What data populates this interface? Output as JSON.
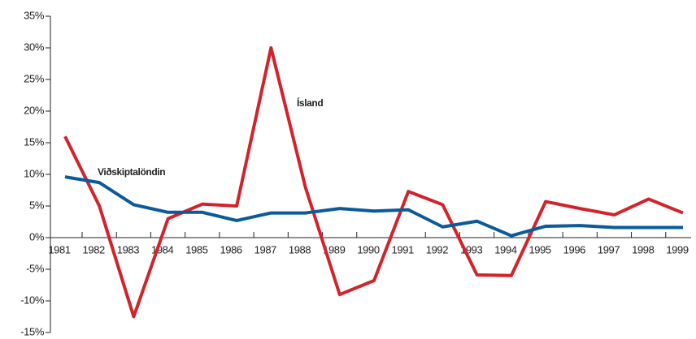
{
  "chart_data": {
    "type": "line",
    "categories": [
      "1981",
      "1982",
      "1983",
      "1984",
      "1985",
      "1986",
      "1987",
      "1988",
      "1989",
      "1990",
      "1991",
      "1992",
      "1993",
      "1994",
      "1995",
      "1996",
      "1997",
      "1998",
      "1999"
    ],
    "series": [
      {
        "name": "Ísland",
        "color": "#d2232a",
        "values": [
          16,
          5,
          -12.5,
          3,
          5.3,
          5,
          30,
          8,
          -9,
          -6.8,
          7.3,
          5.2,
          -5.9,
          -6,
          5.7,
          4.6,
          3.6,
          6.1,
          3.9
        ]
      },
      {
        "name": "Viðskiptalöndin",
        "color": "#0a5a9c",
        "values": [
          9.6,
          8.7,
          5.2,
          4,
          4,
          2.7,
          3.9,
          3.9,
          4.6,
          4.2,
          4.4,
          1.7,
          2.6,
          0.3,
          1.8,
          1.9,
          1.6,
          1.6,
          1.6
        ]
      }
    ],
    "ylim": [
      -15,
      35
    ],
    "yticks": [
      {
        "value": -15,
        "label": "-15%"
      },
      {
        "value": -10,
        "label": "-10%"
      },
      {
        "value": -5,
        "label": "-5%"
      },
      {
        "value": 0,
        "label": "0%"
      },
      {
        "value": 5,
        "label": "5%"
      },
      {
        "value": 10,
        "label": "10%"
      },
      {
        "value": 15,
        "label": "15%"
      },
      {
        "value": 20,
        "label": "20%"
      },
      {
        "value": 25,
        "label": "25%"
      },
      {
        "value": 30,
        "label": "30%"
      },
      {
        "value": 35,
        "label": "35%"
      }
    ]
  }
}
